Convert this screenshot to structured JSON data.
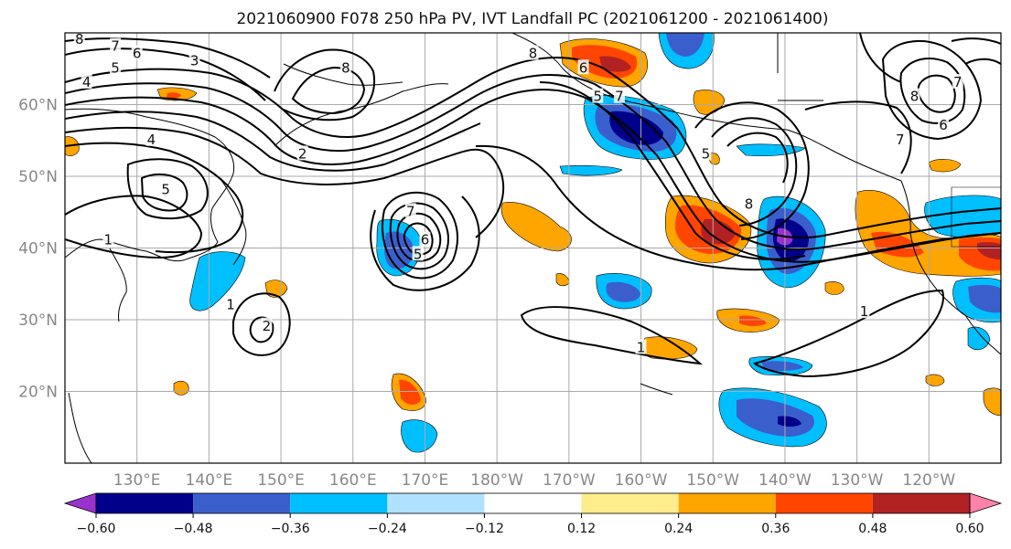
{
  "title": "2021060900 F078 250 hPa PV, IVT Landfall PC (2021061200 - 2021061400)",
  "lat_labels": [
    "60°N",
    "50°N",
    "40°N",
    "30°N",
    "20°N"
  ],
  "lat_values": [
    60,
    50,
    40,
    30,
    20
  ],
  "lon_labels": [
    "130°E",
    "140°E",
    "150°E",
    "160°E",
    "170°E",
    "180°W",
    "170°W",
    "160°W",
    "150°W",
    "140°W",
    "130°W",
    "120°W"
  ],
  "lon_values": [
    130,
    140,
    150,
    160,
    170,
    180,
    190,
    200,
    210,
    220,
    230,
    240
  ],
  "map_extent": {
    "lon": [
      120,
      250
    ],
    "lat": [
      10,
      70
    ]
  },
  "colorbar": {
    "tick_labels": [
      "−0.60",
      "−0.48",
      "−0.36",
      "−0.24",
      "−0.12",
      "0.12",
      "0.24",
      "0.36",
      "0.48",
      "0.60"
    ],
    "tick_values": [
      -0.6,
      -0.48,
      -0.36,
      -0.24,
      -0.12,
      0.12,
      0.24,
      0.36,
      0.48,
      0.6
    ],
    "bin_colors": [
      "#9932CC",
      "#00008B",
      "#3A5FCD",
      "#00BFFF",
      "#B0E2FF",
      "#FFFFFF",
      "#FFEC8B",
      "#FFA500",
      "#FF4500",
      "#B22222",
      "#FF82AB"
    ]
  },
  "contour_labels": [
    {
      "text": "8",
      "lon": 122,
      "lat": 69
    },
    {
      "text": "7",
      "lon": 127,
      "lat": 68
    },
    {
      "text": "6",
      "lon": 130,
      "lat": 67
    },
    {
      "text": "5",
      "lon": 127,
      "lat": 65
    },
    {
      "text": "4",
      "lon": 123,
      "lat": 63
    },
    {
      "text": "3",
      "lon": 138,
      "lat": 66
    },
    {
      "text": "8",
      "lon": 159,
      "lat": 65
    },
    {
      "text": "4",
      "lon": 132,
      "lat": 55
    },
    {
      "text": "2",
      "lon": 153,
      "lat": 53
    },
    {
      "text": "5",
      "lon": 134,
      "lat": 48
    },
    {
      "text": "1",
      "lon": 126,
      "lat": 41
    },
    {
      "text": "7",
      "lon": 168,
      "lat": 45
    },
    {
      "text": "6",
      "lon": 170,
      "lat": 41
    },
    {
      "text": "5",
      "lon": 169,
      "lat": 39
    },
    {
      "text": "8",
      "lon": 185,
      "lat": 67
    },
    {
      "text": "6",
      "lon": 192,
      "lat": 65
    },
    {
      "text": "7",
      "lon": 197,
      "lat": 61
    },
    {
      "text": "5",
      "lon": 194,
      "lat": 61
    },
    {
      "text": "5",
      "lon": 209,
      "lat": 53
    },
    {
      "text": "8",
      "lon": 215,
      "lat": 46
    },
    {
      "text": "1",
      "lon": 143,
      "lat": 32
    },
    {
      "text": "2",
      "lon": 148,
      "lat": 29
    },
    {
      "text": "1",
      "lon": 200,
      "lat": 26
    },
    {
      "text": "1",
      "lon": 231,
      "lat": 31
    },
    {
      "text": "7",
      "lon": 244,
      "lat": 63
    },
    {
      "text": "8",
      "lon": 238,
      "lat": 61
    },
    {
      "text": "7",
      "lon": 236,
      "lat": 55
    },
    {
      "text": "6",
      "lon": 242,
      "lat": 57
    }
  ],
  "colors": {
    "contour": "#000000",
    "grid": "#aaaaaa",
    "coast": "#000000",
    "axis_label": "#888888"
  }
}
